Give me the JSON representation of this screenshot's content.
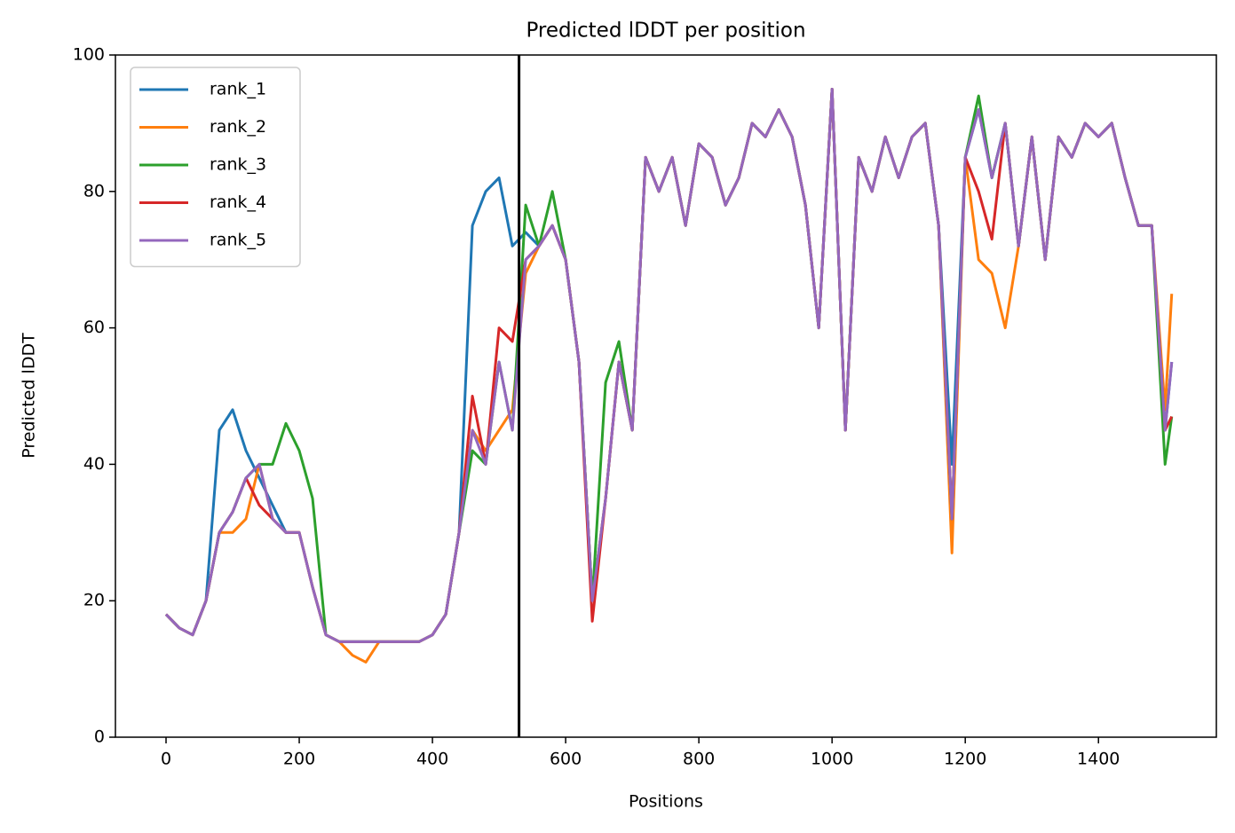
{
  "chart_data": {
    "type": "line",
    "title": "Predicted lDDT per position",
    "xlabel": "Positions",
    "ylabel": "Predicted lDDT",
    "x": [
      0,
      20,
      40,
      60,
      80,
      100,
      120,
      140,
      160,
      180,
      200,
      220,
      240,
      260,
      280,
      300,
      320,
      340,
      360,
      380,
      400,
      420,
      440,
      460,
      480,
      500,
      520,
      540,
      560,
      580,
      600,
      620,
      640,
      660,
      680,
      700,
      720,
      740,
      760,
      780,
      800,
      820,
      840,
      860,
      880,
      900,
      920,
      940,
      960,
      980,
      1000,
      1020,
      1040,
      1060,
      1080,
      1100,
      1120,
      1140,
      1160,
      1180,
      1200,
      1220,
      1240,
      1260,
      1280,
      1300,
      1320,
      1340,
      1360,
      1380,
      1400,
      1420,
      1440,
      1460,
      1480,
      1500,
      1510
    ],
    "series": [
      {
        "name": "rank_1",
        "color": "#1f77b4",
        "values": [
          18,
          16,
          15,
          20,
          45,
          48,
          42,
          38,
          34,
          30,
          30,
          22,
          15,
          14,
          14,
          14,
          14,
          14,
          14,
          14,
          15,
          18,
          30,
          75,
          80,
          82,
          72,
          74,
          72,
          75,
          70,
          55,
          20,
          35,
          55,
          45,
          85,
          80,
          85,
          75,
          87,
          85,
          78,
          82,
          90,
          88,
          92,
          88,
          78,
          60,
          95,
          45,
          85,
          80,
          88,
          82,
          88,
          90,
          75,
          40,
          85,
          92,
          82,
          90,
          72,
          88,
          70,
          88,
          85,
          90,
          88,
          90,
          82,
          75,
          75,
          45,
          55
        ]
      },
      {
        "name": "rank_2",
        "color": "#ff7f0e",
        "values": [
          18,
          16,
          15,
          20,
          30,
          30,
          32,
          40,
          32,
          30,
          30,
          22,
          15,
          14,
          12,
          11,
          14,
          14,
          14,
          14,
          15,
          18,
          30,
          45,
          42,
          45,
          48,
          68,
          72,
          75,
          70,
          55,
          20,
          35,
          55,
          45,
          85,
          80,
          85,
          75,
          87,
          85,
          78,
          82,
          90,
          88,
          92,
          88,
          78,
          60,
          95,
          45,
          85,
          80,
          88,
          82,
          88,
          90,
          75,
          27,
          85,
          70,
          68,
          60,
          72,
          88,
          70,
          88,
          85,
          90,
          88,
          90,
          82,
          75,
          75,
          48,
          65
        ]
      },
      {
        "name": "rank_3",
        "color": "#2ca02c",
        "values": [
          18,
          16,
          15,
          20,
          30,
          33,
          38,
          40,
          40,
          46,
          42,
          35,
          15,
          14,
          14,
          14,
          14,
          14,
          14,
          14,
          15,
          18,
          30,
          42,
          40,
          55,
          45,
          78,
          72,
          80,
          70,
          55,
          20,
          52,
          58,
          45,
          85,
          80,
          85,
          75,
          87,
          85,
          78,
          82,
          90,
          88,
          92,
          88,
          78,
          60,
          95,
          45,
          85,
          80,
          88,
          82,
          88,
          90,
          75,
          32,
          85,
          94,
          82,
          90,
          72,
          88,
          70,
          88,
          85,
          90,
          88,
          90,
          82,
          75,
          75,
          40,
          47
        ]
      },
      {
        "name": "rank_4",
        "color": "#d62728",
        "values": [
          18,
          16,
          15,
          20,
          30,
          33,
          38,
          34,
          32,
          30,
          30,
          22,
          15,
          14,
          14,
          14,
          14,
          14,
          14,
          14,
          15,
          18,
          30,
          50,
          40,
          60,
          58,
          70,
          72,
          75,
          70,
          55,
          17,
          35,
          55,
          45,
          85,
          80,
          85,
          75,
          87,
          85,
          78,
          82,
          90,
          88,
          92,
          88,
          78,
          60,
          95,
          45,
          85,
          80,
          88,
          82,
          88,
          90,
          75,
          32,
          85,
          80,
          73,
          90,
          72,
          88,
          70,
          88,
          85,
          90,
          88,
          90,
          82,
          75,
          75,
          45,
          47
        ]
      },
      {
        "name": "rank_5",
        "color": "#9467bd",
        "values": [
          18,
          16,
          15,
          20,
          30,
          33,
          38,
          40,
          32,
          30,
          30,
          22,
          15,
          14,
          14,
          14,
          14,
          14,
          14,
          14,
          15,
          18,
          30,
          45,
          40,
          55,
          45,
          70,
          72,
          75,
          70,
          55,
          20,
          35,
          55,
          45,
          85,
          80,
          85,
          75,
          87,
          85,
          78,
          82,
          90,
          88,
          92,
          88,
          78,
          60,
          95,
          45,
          85,
          80,
          88,
          82,
          88,
          90,
          75,
          32,
          85,
          92,
          82,
          90,
          72,
          88,
          70,
          88,
          85,
          90,
          88,
          90,
          82,
          75,
          75,
          45,
          55
        ]
      }
    ],
    "vline": 530,
    "xlim": [
      -76,
      1577
    ],
    "ylim": [
      0,
      100
    ],
    "xticks": [
      0,
      200,
      400,
      600,
      800,
      1000,
      1200,
      1400
    ],
    "yticks": [
      0,
      20,
      40,
      60,
      80,
      100
    ],
    "legend": "upper left",
    "grid": false
  }
}
